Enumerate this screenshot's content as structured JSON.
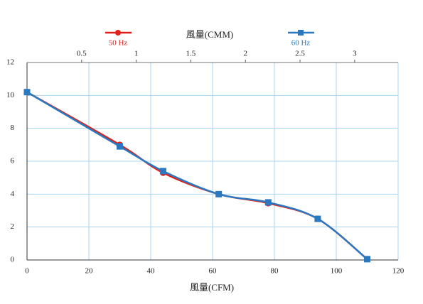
{
  "chart_data": {
    "type": "line",
    "x_label": "風量(CFM)",
    "x2_label": "風量(CMM)",
    "xlim": [
      0,
      120
    ],
    "xticks": [
      0,
      20,
      40,
      60,
      80,
      100,
      120
    ],
    "x2lim": [
      0,
      3.398
    ],
    "x2ticks": [
      0.5,
      1,
      1.5,
      2,
      2.5,
      3
    ],
    "ylim": [
      0,
      12
    ],
    "yticks": [
      0,
      2,
      4,
      6,
      8,
      10,
      12
    ],
    "grid": true,
    "smooth": true,
    "series": [
      {
        "name": "50 Hz",
        "color": "#e0201b",
        "marker": "circle",
        "x": [
          0,
          30,
          44,
          62,
          78,
          94,
          110
        ],
        "values": [
          10.2,
          7.0,
          5.3,
          4.0,
          3.45,
          2.5,
          0.05
        ]
      },
      {
        "name": "60 Hz",
        "color": "#2a78c0",
        "marker": "square",
        "x": [
          0,
          30,
          44,
          62,
          78,
          94,
          110
        ],
        "values": [
          10.2,
          6.9,
          5.4,
          4.0,
          3.5,
          2.5,
          0.05
        ]
      }
    ]
  }
}
